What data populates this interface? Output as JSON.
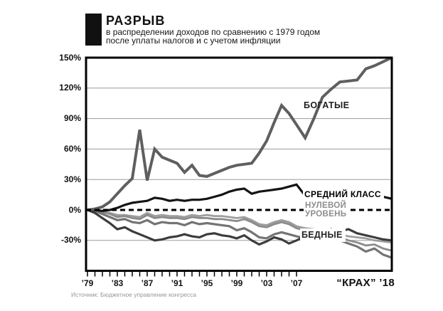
{
  "header": {
    "title": "РАЗРЫВ",
    "subtitle_line1": "в распределении доходов по сравнению с 1979 годом",
    "subtitle_line2": "после уплаты налогов и с учетом инфляции"
  },
  "labels": {
    "rich": "БОГАТЫЕ",
    "middle_class": "СРЕДНИЙ КЛАСС",
    "zero_line1": "НУЛЕВОЙ",
    "zero_line2": "УРОВЕНЬ",
    "poor": "БЕДНЫЕ",
    "crash_year": "“КРАХ” ’18"
  },
  "source": "Источник: Бюджетное управление конгресса",
  "colors": {
    "rich_line": "#5f5f5f",
    "middle_line": "#141414",
    "poor_light": "#9d9d9d",
    "poor_mid": "#8b8b8b",
    "poor_gray": "#747474",
    "poor_dark": "#3c3c3c",
    "gridline": "#9a9a9a",
    "frame": "#000000"
  },
  "chart_data": {
    "type": "line",
    "title": "РАЗРЫВ в распределении доходов по сравнению с 1979 годом после уплаты налогов и с учетом инфляции",
    "xlabel": "",
    "ylabel": "",
    "xlim": [
      1979,
      2018
    ],
    "ylim": [
      -60,
      150
    ],
    "grid": "horizontal",
    "legend_position": "inline-annotations",
    "x": [
      1979,
      1980,
      1981,
      1982,
      1983,
      1984,
      1985,
      1986,
      1987,
      1988,
      1989,
      1990,
      1991,
      1992,
      1993,
      1994,
      1995,
      1996,
      1997,
      1998,
      1999,
      2000,
      2001,
      2002,
      2003,
      2004,
      2005,
      2006,
      2007,
      2008,
      2009,
      2010,
      2011,
      2012,
      2013,
      2014,
      2015,
      2016,
      2017,
      2018
    ],
    "x_tick_labels": [
      {
        "year": 1979,
        "label": "’79"
      },
      {
        "year": 1983,
        "label": "’83"
      },
      {
        "year": 1987,
        "label": "’87"
      },
      {
        "year": 1991,
        "label": "’91"
      },
      {
        "year": 1995,
        "label": "’95"
      },
      {
        "year": 1999,
        "label": "’99"
      },
      {
        "year": 2003,
        "label": "’03"
      },
      {
        "year": 2007,
        "label": "’07"
      }
    ],
    "minor_ticks": {
      "from": 1979,
      "to": 2007,
      "step": 1
    },
    "y_ticks": [
      {
        "value": 150,
        "label": "150%"
      },
      {
        "value": 120,
        "label": "120%"
      },
      {
        "value": 90,
        "label": "90%"
      },
      {
        "value": 60,
        "label": "60%"
      },
      {
        "value": 30,
        "label": "30%"
      },
      {
        "value": 0,
        "label": "0%"
      },
      {
        "value": -30,
        "label": "-30%"
      }
    ],
    "zero_line": {
      "value": 0,
      "style": "dashed",
      "label": "НУЛЕВОЙ УРОВЕНЬ"
    },
    "series": [
      {
        "key": "poor_1",
        "name": "Бедные (линия 1)",
        "color": "#9d9d9d",
        "width": 2.8,
        "values": [
          0,
          0,
          -2,
          -3,
          -5,
          -5,
          -6,
          -7,
          -3,
          -6,
          -5,
          -6,
          -6,
          -7,
          -5,
          -6,
          -5,
          -6,
          -6,
          -7,
          -8,
          -7,
          -10,
          -14,
          -15,
          -12,
          -10,
          -12,
          -16,
          -18,
          -19,
          -21,
          -23,
          -24,
          -26,
          -27,
          -28,
          -30,
          -31,
          -32
        ]
      },
      {
        "key": "poor_2",
        "name": "Бедные (линия 2)",
        "color": "#8b8b8b",
        "width": 2.8,
        "values": [
          0,
          -1,
          -2,
          -4,
          -7,
          -6,
          -8,
          -9,
          -5,
          -8,
          -7,
          -8,
          -8,
          -9,
          -7,
          -8,
          -8,
          -9,
          -9,
          -10,
          -11,
          -9,
          -12,
          -16,
          -17,
          -14,
          -12,
          -14,
          -18,
          -20,
          -22,
          -24,
          -25,
          -27,
          -30,
          -32,
          -35,
          -34,
          -38,
          -40
        ]
      },
      {
        "key": "poor_3",
        "name": "Бедные (линия 3)",
        "color": "#747474",
        "width": 3.2,
        "values": [
          0,
          -1,
          -4,
          -7,
          -10,
          -9,
          -12,
          -13,
          -10,
          -14,
          -12,
          -13,
          -13,
          -15,
          -12,
          -14,
          -13,
          -14,
          -15,
          -16,
          -20,
          -18,
          -22,
          -27,
          -28,
          -24,
          -22,
          -24,
          -26,
          -28,
          -29,
          -28,
          -27,
          -30,
          -33,
          -36,
          -41,
          -38,
          -44,
          -47
        ]
      },
      {
        "key": "poor_4",
        "name": "Бедные (линия 4)",
        "color": "#3c3c3c",
        "width": 3.2,
        "values": [
          0,
          -3,
          -8,
          -13,
          -19,
          -17,
          -21,
          -24,
          -27,
          -30,
          -29,
          -27,
          -26,
          -24,
          -26,
          -27,
          -24,
          -23,
          -25,
          -26,
          -28,
          -25,
          -30,
          -34,
          -31,
          -27,
          -29,
          -33,
          -30,
          -26,
          -23,
          -21,
          -19,
          -21,
          -19,
          -23,
          -25,
          -27,
          -29,
          -30
        ]
      },
      {
        "key": "middle_class",
        "name": "Средний класс",
        "color": "#141414",
        "width": 3.2,
        "values": [
          0,
          0,
          -1,
          0,
          2,
          5,
          7,
          8,
          9,
          12,
          11,
          9,
          10,
          9,
          10,
          10,
          11,
          13,
          15,
          18,
          20,
          21,
          16,
          18,
          19,
          20,
          21,
          23,
          25,
          14,
          13,
          13,
          14,
          14,
          14,
          14,
          14,
          14,
          13,
          11
        ]
      },
      {
        "key": "rich",
        "name": "Богатые",
        "color": "#5f5f5f",
        "width": 4,
        "values": [
          0,
          1,
          3,
          8,
          16,
          24,
          31,
          79,
          29,
          60,
          52,
          49,
          46,
          37,
          44,
          34,
          33,
          36,
          39,
          42,
          44,
          45,
          46,
          56,
          68,
          86,
          103,
          95,
          84,
          71,
          90,
          111,
          119,
          126,
          127,
          128,
          139,
          142,
          146,
          150
        ]
      }
    ]
  }
}
